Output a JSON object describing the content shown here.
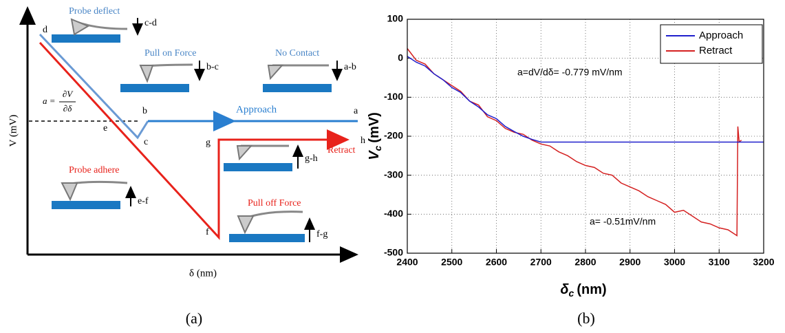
{
  "diagram": {
    "y_label": "V (mV)",
    "x_label": "δ (nm)",
    "formula": {
      "lhs": "a =",
      "num": "∂V",
      "den": "∂δ"
    },
    "points": [
      "d",
      "b",
      "a",
      "c",
      "e",
      "f",
      "g",
      "h"
    ],
    "curves": {
      "approach": "Approach",
      "retract": "Retract"
    },
    "states": [
      {
        "title": "Probe deflect",
        "arrow": "c-d"
      },
      {
        "title": "Pull on Force",
        "arrow": "b-c"
      },
      {
        "title": "No Contact",
        "arrow": "a-b"
      },
      {
        "title": "Probe adhere",
        "arrow": "e-f"
      },
      {
        "arrow": "g-h"
      },
      {
        "title": "Pull off Force",
        "arrow": "f-g"
      }
    ],
    "caption": "(a)"
  },
  "chart_data": {
    "type": "line",
    "x_label": "δ",
    "x_label_sub": "c",
    "x_label_unit": "(nm)",
    "y_label": "V",
    "y_label_sub": "c",
    "y_label_unit": "(mV)",
    "xlim": [
      2400,
      3200
    ],
    "xticks": [
      2400,
      2500,
      2600,
      2700,
      2800,
      2900,
      3000,
      3100,
      3200
    ],
    "ylim": [
      -500,
      100
    ],
    "yticks": [
      -500,
      -400,
      -300,
      -200,
      -100,
      0,
      100
    ],
    "grid": true,
    "legend": "upper right",
    "annotations": [
      "a=dV/dδ= -0.779 mV/nm",
      "a= -0.51mV/nm"
    ],
    "series": [
      {
        "name": "Approach",
        "color": "#1f1fcc",
        "x": [
          2400,
          2420,
          2440,
          2460,
          2480,
          2500,
          2520,
          2540,
          2560,
          2580,
          2600,
          2620,
          2640,
          2660,
          2680,
          2700,
          2800,
          3000,
          3200
        ],
        "values": [
          5,
          -10,
          -20,
          -40,
          -55,
          -75,
          -88,
          -110,
          -125,
          -145,
          -155,
          -175,
          -188,
          -200,
          -208,
          -215,
          -215,
          -215,
          -215
        ]
      },
      {
        "name": "Retract",
        "color": "#d42020",
        "x": [
          2400,
          2410,
          2420,
          2440,
          2460,
          2480,
          2500,
          2520,
          2540,
          2560,
          2580,
          2600,
          2620,
          2640,
          2660,
          2680,
          2700,
          2720,
          2740,
          2760,
          2780,
          2800,
          2820,
          2840,
          2860,
          2880,
          2900,
          2920,
          2940,
          2960,
          2980,
          3000,
          3020,
          3040,
          3060,
          3080,
          3100,
          3120,
          3140,
          3142,
          3145,
          3150
        ],
        "values": [
          25,
          10,
          -5,
          -15,
          -40,
          -55,
          -70,
          -85,
          -110,
          -120,
          -150,
          -160,
          -180,
          -190,
          -195,
          -210,
          -220,
          -225,
          -240,
          -250,
          -265,
          -275,
          -280,
          -295,
          -300,
          -320,
          -330,
          -340,
          -355,
          -365,
          -375,
          -395,
          -390,
          -405,
          -420,
          -425,
          -435,
          -440,
          -455,
          -175,
          -215,
          -210
        ]
      }
    ],
    "caption": "(b)"
  }
}
